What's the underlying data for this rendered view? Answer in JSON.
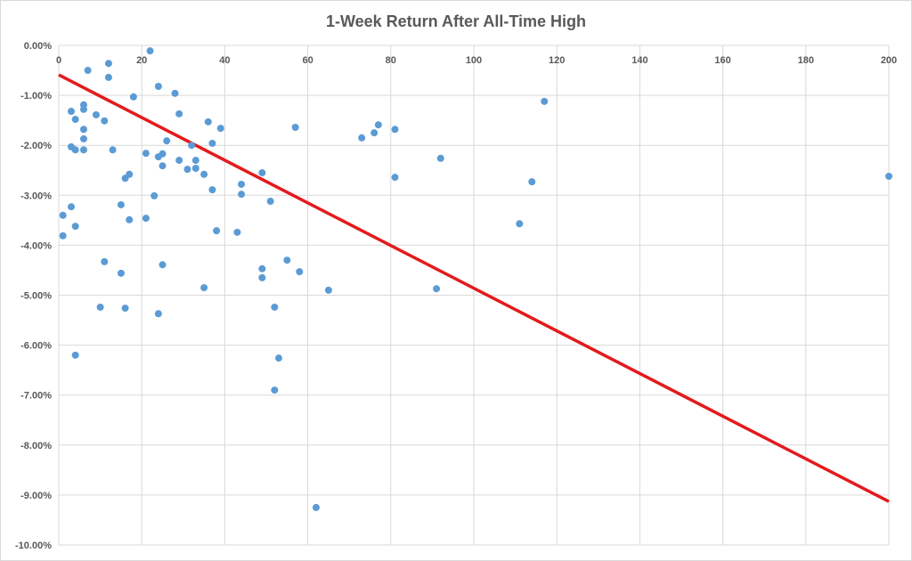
{
  "chart_data": {
    "type": "scatter",
    "title": "1-Week Return After All-Time High",
    "xlabel": "",
    "ylabel": "",
    "xlim": [
      0,
      200
    ],
    "ylim": [
      -10,
      0
    ],
    "grid": true,
    "x_ticks": [
      "0",
      "20",
      "40",
      "60",
      "80",
      "100",
      "120",
      "140",
      "160",
      "180",
      "200"
    ],
    "x_tick_values": [
      0,
      20,
      40,
      60,
      80,
      100,
      120,
      140,
      160,
      180,
      200
    ],
    "y_ticks": [
      "0.00%",
      "-1.00%",
      "-2.00%",
      "-3.00%",
      "-4.00%",
      "-5.00%",
      "-6.00%",
      "-7.00%",
      "-8.00%",
      "-9.00%",
      "-10.00%"
    ],
    "y_tick_values": [
      0,
      -1,
      -2,
      -3,
      -4,
      -5,
      -6,
      -7,
      -8,
      -9,
      -10
    ],
    "series": [
      {
        "name": "1-Week Return",
        "color": "#5b9bd5",
        "points": [
          [
            1,
            -3.4
          ],
          [
            1,
            -3.81
          ],
          [
            3,
            -1.32
          ],
          [
            3,
            -2.03
          ],
          [
            3,
            -3.23
          ],
          [
            4,
            -1.48
          ],
          [
            4,
            -2.09
          ],
          [
            4,
            -3.62
          ],
          [
            4,
            -6.2
          ],
          [
            6,
            -1.19
          ],
          [
            6,
            -1.28
          ],
          [
            6,
            -1.68
          ],
          [
            6,
            -1.87
          ],
          [
            6,
            -2.09
          ],
          [
            7,
            -0.5
          ],
          [
            9,
            -1.39
          ],
          [
            11,
            -1.51
          ],
          [
            10,
            -5.24
          ],
          [
            11,
            -4.33
          ],
          [
            12,
            -0.36
          ],
          [
            12,
            -0.64
          ],
          [
            13,
            -2.09
          ],
          [
            15,
            -3.19
          ],
          [
            15,
            -4.56
          ],
          [
            16,
            -5.26
          ],
          [
            16,
            -2.66
          ],
          [
            17,
            -2.58
          ],
          [
            17,
            -3.49
          ],
          [
            18,
            -1.03
          ],
          [
            21,
            -2.16
          ],
          [
            21,
            -3.46
          ],
          [
            22,
            -0.11
          ],
          [
            23,
            -3.01
          ],
          [
            24,
            -0.82
          ],
          [
            24,
            -2.23
          ],
          [
            24,
            -5.37
          ],
          [
            25,
            -2.17
          ],
          [
            25,
            -2.41
          ],
          [
            25,
            -4.39
          ],
          [
            26,
            -1.91
          ],
          [
            28,
            -0.96
          ],
          [
            29,
            -1.37
          ],
          [
            29,
            -2.3
          ],
          [
            31,
            -2.48
          ],
          [
            32,
            -2.0
          ],
          [
            33,
            -2.3
          ],
          [
            33,
            -2.46
          ],
          [
            35,
            -2.58
          ],
          [
            35,
            -4.85
          ],
          [
            36,
            -1.53
          ],
          [
            37,
            -1.96
          ],
          [
            37,
            -2.89
          ],
          [
            38,
            -3.71
          ],
          [
            39,
            -1.66
          ],
          [
            43,
            -3.74
          ],
          [
            44,
            -2.78
          ],
          [
            44,
            -2.98
          ],
          [
            49,
            -2.55
          ],
          [
            49,
            -4.47
          ],
          [
            49,
            -4.65
          ],
          [
            51,
            -3.12
          ],
          [
            52,
            -5.24
          ],
          [
            52,
            -6.9
          ],
          [
            53,
            -6.26
          ],
          [
            55,
            -4.3
          ],
          [
            57,
            -1.64
          ],
          [
            58,
            -4.53
          ],
          [
            62,
            -9.25
          ],
          [
            65,
            -4.9
          ],
          [
            73,
            -1.85
          ],
          [
            76,
            -1.75
          ],
          [
            77,
            -1.59
          ],
          [
            81,
            -1.68
          ],
          [
            81,
            -2.64
          ],
          [
            91,
            -4.87
          ],
          [
            92,
            -2.26
          ],
          [
            111,
            -3.57
          ],
          [
            114,
            -2.73
          ],
          [
            117,
            -1.12
          ],
          [
            200,
            -2.62
          ]
        ]
      }
    ],
    "trendline": {
      "name": "Linear trend",
      "color": "#e31a1c",
      "x": [
        0,
        200
      ],
      "y": [
        -0.59,
        -9.13
      ]
    }
  }
}
